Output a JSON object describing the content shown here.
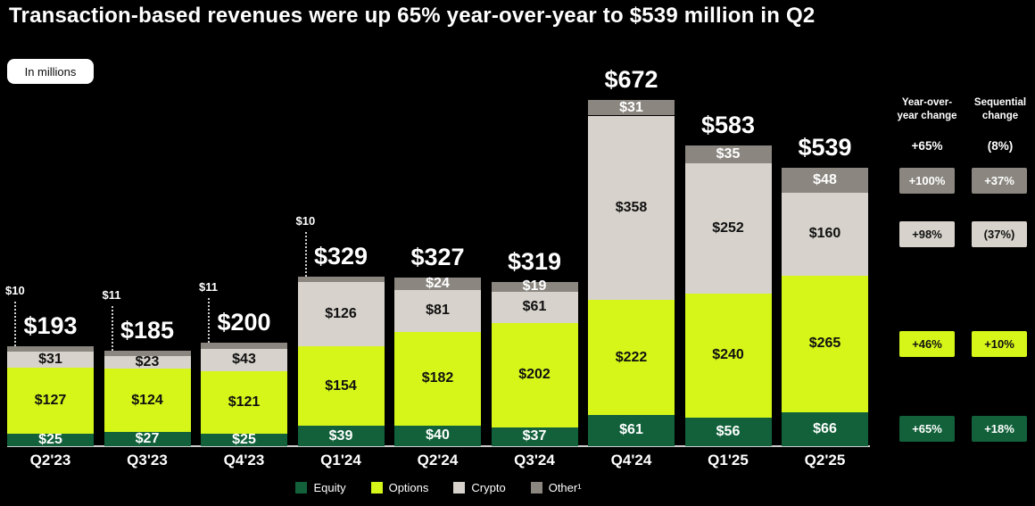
{
  "title": "Transaction-based revenues were up 65% year-over-year to $539 million in Q2",
  "units_badge": "In millions",
  "colors": {
    "background": "#000000",
    "equity": "#12613b",
    "options": "#d6f61a",
    "crypto": "#d7d3cc",
    "other": "#8b8780",
    "axis_line": "#d0d0d0",
    "text_light": "#ffffff",
    "text_dark": "#101010"
  },
  "chart_data": {
    "type": "bar",
    "stacked": true,
    "title": "Transaction-based revenues were up 65% year-over-year to $539 million in Q2",
    "units": "In millions",
    "categories": [
      "Q2'23",
      "Q3'23",
      "Q4'23",
      "Q1'24",
      "Q2'24",
      "Q3'24",
      "Q4'24",
      "Q1'25",
      "Q2'25"
    ],
    "series": [
      {
        "name": "Equity",
        "key": "equity",
        "label_color": "light",
        "values": [
          25,
          27,
          25,
          39,
          40,
          37,
          61,
          56,
          66
        ]
      },
      {
        "name": "Options",
        "key": "options",
        "label_color": "dark",
        "values": [
          127,
          124,
          121,
          154,
          182,
          202,
          222,
          240,
          265
        ]
      },
      {
        "name": "Crypto",
        "key": "crypto",
        "label_color": "dark",
        "values": [
          31,
          23,
          43,
          126,
          81,
          61,
          358,
          252,
          160
        ]
      },
      {
        "name": "Other¹",
        "key": "other",
        "label_color": "light",
        "values": [
          10,
          11,
          11,
          10,
          24,
          19,
          31,
          35,
          48
        ]
      }
    ],
    "totals": [
      193,
      185,
      200,
      329,
      327,
      319,
      672,
      583,
      539
    ],
    "other_label_placement": [
      "leader",
      "leader",
      "leader",
      "leader",
      "inside",
      "inside",
      "inside",
      "inside",
      "inside"
    ],
    "value_prefix": "$",
    "ylim": [
      0,
      700
    ],
    "legend_position": "bottom"
  },
  "change_columns": [
    {
      "key": "yoy",
      "header_line1": "Year-over-",
      "header_line2": "year change",
      "total": "+65%",
      "badges": {
        "other": "+100%",
        "crypto": "+98%",
        "options": "+46%",
        "equity": "+65%"
      }
    },
    {
      "key": "seq",
      "header_line1": "Sequential",
      "header_line2": "change",
      "total": "(8%)",
      "badges": {
        "other": "+37%",
        "crypto": "(37%)",
        "options": "+10%",
        "equity": "+18%"
      }
    }
  ]
}
